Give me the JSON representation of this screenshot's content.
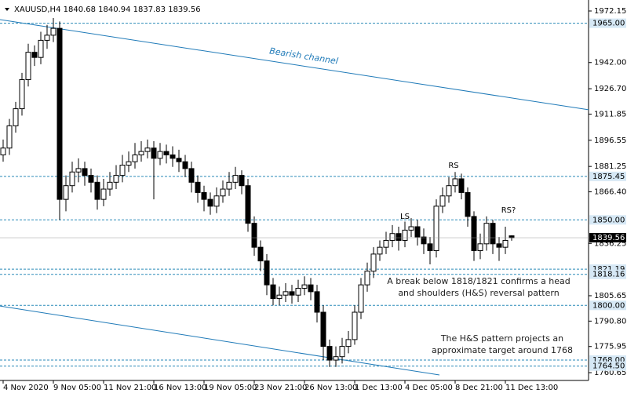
{
  "chart_data": {
    "type": "candlestick",
    "title": "XAUUSD,H4  1840.68 1840.94 1837.83 1839.56",
    "categories": [
      "4 Nov 2020",
      null,
      null,
      null,
      null,
      null,
      null,
      null,
      "9 Nov 05:00",
      null,
      null,
      null,
      null,
      null,
      null,
      null,
      "11 Nov 21:00",
      null,
      null,
      null,
      null,
      null,
      null,
      null,
      "16 Nov 13:00",
      null,
      null,
      null,
      null,
      null,
      null,
      null,
      "19 Nov 05:00",
      null,
      null,
      null,
      null,
      null,
      null,
      null,
      "23 Nov 21:00",
      null,
      null,
      null,
      null,
      null,
      null,
      null,
      "26 Nov 13:00",
      null,
      null,
      null,
      null,
      null,
      null,
      null,
      "1 Dec 13:00",
      null,
      null,
      null,
      null,
      null,
      null,
      null,
      "4 Dec 05:00",
      null,
      null,
      null,
      null,
      null,
      null,
      null,
      "8 Dec 21:00",
      null,
      null,
      null,
      null,
      null,
      null,
      null,
      "11 Dec 13:00",
      null
    ],
    "open": [
      1888,
      1892,
      1905,
      1915,
      1932,
      1948,
      1945,
      1955,
      1958,
      1962,
      1862,
      1870,
      1878,
      1880,
      1876,
      1872,
      1862,
      1868,
      1872,
      1876,
      1882,
      1884,
      1888,
      1890,
      1892,
      1886,
      1890,
      1888,
      1886,
      1884,
      1880,
      1872,
      1866,
      1862,
      1858,
      1864,
      1868,
      1872,
      1876,
      1870,
      1848,
      1834,
      1826,
      1812,
      1804,
      1806,
      1808,
      1806,
      1810,
      1812,
      1808,
      1796,
      1776,
      1768,
      1770,
      1776,
      1780,
      1796,
      1812,
      1820,
      1830,
      1834,
      1838,
      1842,
      1838,
      1844,
      1846,
      1840,
      1836,
      1832,
      1858,
      1864,
      1870,
      1874,
      1866,
      1852,
      1832,
      1836,
      1848,
      1836,
      1834,
      1840.68
    ],
    "high": [
      1897,
      1909,
      1919,
      1936,
      1953,
      1952,
      1960,
      1964,
      1968,
      1966,
      1876,
      1884,
      1886,
      1884,
      1880,
      1876,
      1874,
      1878,
      1882,
      1888,
      1890,
      1895,
      1896,
      1897,
      1896,
      1895,
      1894,
      1893,
      1891,
      1888,
      1884,
      1876,
      1870,
      1866,
      1869,
      1873,
      1878,
      1881,
      1879,
      1874,
      1852,
      1838,
      1830,
      1816,
      1811,
      1813,
      1812,
      1815,
      1817,
      1816,
      1812,
      1800,
      1780,
      1776,
      1781,
      1785,
      1800,
      1816,
      1825,
      1834,
      1838,
      1843,
      1847,
      1846,
      1849,
      1851,
      1850,
      1845,
      1840,
      1862,
      1869,
      1875,
      1878,
      1877,
      1869,
      1855,
      1842,
      1852,
      1850,
      1840,
      1846,
      1840.94
    ],
    "low": [
      1884,
      1888,
      1901,
      1911,
      1928,
      1940,
      1941,
      1950,
      1954,
      1850,
      1855,
      1866,
      1872,
      1870,
      1866,
      1856,
      1858,
      1864,
      1868,
      1872,
      1878,
      1880,
      1884,
      1886,
      1862,
      1882,
      1883,
      1881,
      1878,
      1875,
      1866,
      1860,
      1855,
      1853,
      1854,
      1860,
      1864,
      1868,
      1865,
      1843,
      1829,
      1820,
      1806,
      1800,
      1800,
      1802,
      1801,
      1802,
      1806,
      1803,
      1790,
      1768,
      1764,
      1764,
      1766,
      1772,
      1777,
      1792,
      1808,
      1816,
      1826,
      1830,
      1834,
      1832,
      1834,
      1840,
      1835,
      1830,
      1824,
      1828,
      1854,
      1860,
      1866,
      1862,
      1846,
      1826,
      1827,
      1832,
      1830,
      1826,
      1830,
      1837.83
    ],
    "close": [
      1892,
      1905,
      1915,
      1932,
      1948,
      1945,
      1955,
      1958,
      1962,
      1862,
      1870,
      1878,
      1880,
      1876,
      1872,
      1862,
      1868,
      1872,
      1876,
      1882,
      1884,
      1888,
      1890,
      1892,
      1886,
      1890,
      1888,
      1886,
      1884,
      1880,
      1872,
      1866,
      1862,
      1858,
      1864,
      1868,
      1872,
      1876,
      1870,
      1848,
      1834,
      1826,
      1812,
      1804,
      1806,
      1808,
      1806,
      1810,
      1812,
      1808,
      1796,
      1776,
      1768,
      1770,
      1776,
      1780,
      1796,
      1812,
      1820,
      1830,
      1834,
      1838,
      1842,
      1838,
      1844,
      1846,
      1840,
      1836,
      1832,
      1858,
      1864,
      1870,
      1874,
      1866,
      1852,
      1832,
      1836,
      1848,
      1836,
      1834,
      1838,
      1839.56
    ],
    "ylim": [
      1756.1,
      1977.2
    ],
    "yticks": [
      {
        "value": 1972.15,
        "label": "1972.15"
      },
      {
        "value": 1942,
        "label": "1942.00"
      },
      {
        "value": 1926.7,
        "label": "1926.70"
      },
      {
        "value": 1911.85,
        "label": "1911.85"
      },
      {
        "value": 1896.55,
        "label": "1896.55"
      },
      {
        "value": 1881.25,
        "label": "1881.25"
      },
      {
        "value": 1866.4,
        "label": "1866.40"
      },
      {
        "value": 1836.25,
        "label": "1836.25"
      },
      {
        "value": 1805.65,
        "label": "1805.65"
      },
      {
        "value": 1790.8,
        "label": "1790.80"
      },
      {
        "value": 1775.95,
        "label": "1775.95"
      },
      {
        "value": 1760.65,
        "label": "1760.65"
      }
    ],
    "levels": [
      {
        "value": 1965,
        "label": "1965.00"
      },
      {
        "value": 1875.45,
        "label": "1875.45"
      },
      {
        "value": 1850,
        "label": "1850.00"
      },
      {
        "value": 1821.19,
        "label": "1821.19"
      },
      {
        "value": 1818.16,
        "label": "1818.16"
      },
      {
        "value": 1800,
        "label": "1800.00"
      },
      {
        "value": 1768,
        "label": "1768.00"
      },
      {
        "value": 1764.5,
        "label": "1764.50"
      }
    ],
    "current_price": {
      "value": 1839.56,
      "label": "1839.56"
    },
    "channel_upper": {
      "x": [
        -0.5,
        93.25
      ],
      "y": [
        1967.1,
        1914.4
      ]
    },
    "channel_lower": {
      "x": [
        -0.5,
        69.5
      ],
      "y": [
        1799.6,
        1759.3
      ]
    },
    "annotations": {
      "channel": "Bearish channel",
      "ls": "LS",
      "rs": "RS",
      "rs2": "RS?",
      "break": [
        "A break below 1818/1821 confirms a head",
        "and shoulders (H&S) reversal pattern"
      ],
      "target": [
        "The H&S pattern projects an",
        "approximate target around 1768"
      ]
    }
  }
}
